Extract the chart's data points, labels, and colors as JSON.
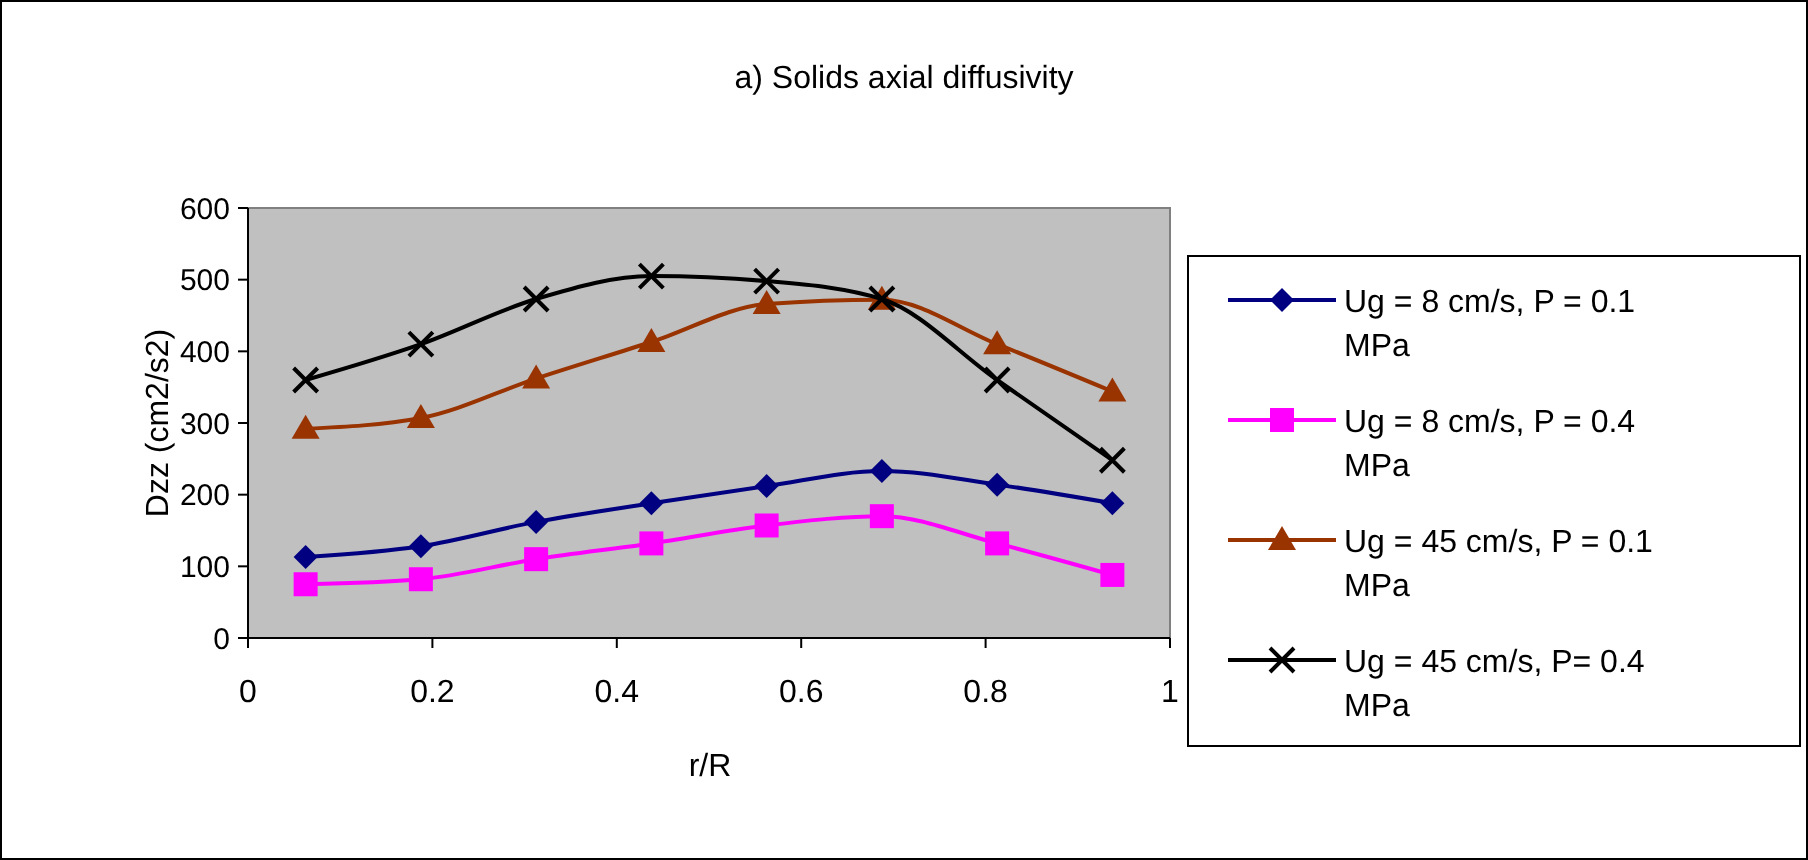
{
  "chart_data": {
    "type": "line",
    "title": "a) Solids axial diffusivity",
    "xlabel": "r/R",
    "ylabel": "Dzz (cm2/s2)",
    "x": [
      0.0625,
      0.1875,
      0.3125,
      0.4375,
      0.5625,
      0.6875,
      0.8125,
      0.9375
    ],
    "series": [
      {
        "name": "Ug = 8 cm/s, P = 0.1 MPa",
        "color": "#000080",
        "marker": "diamond",
        "values": [
          113,
          128,
          162,
          188,
          212,
          233,
          214,
          188
        ]
      },
      {
        "name": "Ug = 8 cm/s, P = 0.4 MPa",
        "color": "#ff00ff",
        "marker": "square",
        "values": [
          75,
          82,
          110,
          132,
          157,
          170,
          132,
          88
        ]
      },
      {
        "name": "Ug = 45 cm/s, P = 0.1 MPa",
        "color": "#993300",
        "marker": "triangle",
        "values": [
          292,
          307,
          362,
          413,
          466,
          472,
          410,
          344
        ]
      },
      {
        "name": "Ug = 45 cm/s, P= 0.4 MPa",
        "color": "#000000",
        "marker": "cross",
        "values": [
          360,
          410,
          473,
          505,
          498,
          473,
          360,
          248
        ]
      }
    ],
    "xlim": [
      0,
      1
    ],
    "xticks": [
      0,
      0.2,
      0.4,
      0.6,
      0.8,
      1
    ],
    "ylim": [
      0,
      600
    ],
    "yticks": [
      0,
      100,
      200,
      300,
      400,
      500,
      600
    ],
    "grid": false,
    "legend": "right"
  }
}
